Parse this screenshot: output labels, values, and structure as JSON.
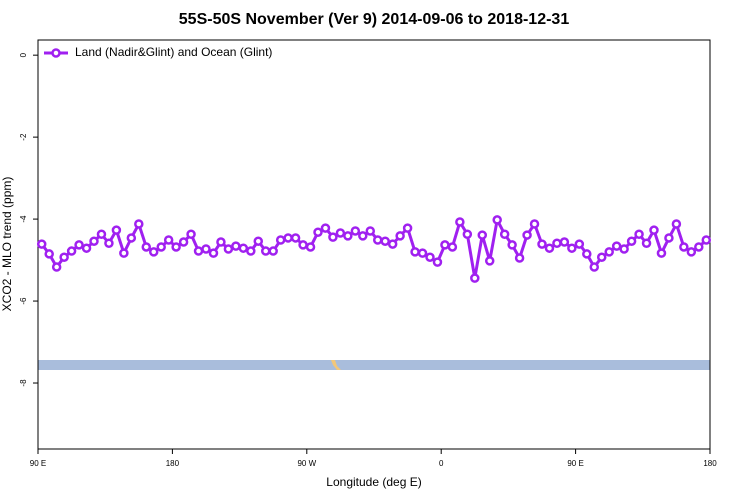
{
  "chart_data": {
    "type": "line",
    "title": "55S-50S November (Ver 9)   2014-09-06 to 2018-12-31",
    "xlabel": "Longitude (deg E)",
    "ylabel": "XCO2 - MLO trend (ppm)",
    "legend": "top-left",
    "x": [
      92.5,
      97.5,
      102.5,
      107.5,
      112.5,
      117.5,
      122.5,
      127.5,
      132.5,
      137.5,
      142.5,
      147.5,
      152.5,
      157.5,
      162.5,
      167.5,
      172.5,
      177.5,
      182.5,
      187.5,
      192.5,
      197.5,
      202.5,
      207.5,
      212.5,
      217.5,
      222.5,
      227.5,
      232.5,
      237.5,
      242.5,
      247.5,
      252.5,
      257.5,
      262.5,
      267.5,
      272.5,
      277.5,
      282.5,
      287.5,
      292.5,
      297.5,
      302.5,
      307.5,
      312.5,
      317.5,
      322.5,
      327.5,
      332.5,
      337.5,
      342.5,
      347.5,
      352.5,
      357.5,
      362.5,
      367.5,
      372.5,
      377.5,
      382.5,
      387.5,
      392.5,
      397.5,
      402.5,
      407.5,
      412.5,
      417.5,
      422.5,
      427.5,
      432.5,
      437.5,
      442.5,
      447.5,
      452.5,
      457.5,
      462.5,
      467.5,
      472.5,
      477.5,
      482.5,
      487.5,
      492.5,
      497.5,
      502.5,
      507.5,
      512.5,
      517.5,
      522.5,
      527.5,
      532.5,
      537.5
    ],
    "series": [
      {
        "name": "Land (Nadir&Glint) and Ocean (Glint)",
        "color": "#a020f0",
        "values": [
          -4.61,
          -4.85,
          -5.17,
          -4.93,
          -4.78,
          -4.63,
          -4.71,
          -4.54,
          -4.37,
          -4.59,
          -4.27,
          -4.83,
          -4.46,
          -4.12,
          -4.68,
          -4.8,
          -4.68,
          -4.51,
          -4.68,
          -4.56,
          -4.37,
          -4.78,
          -4.73,
          -4.83,
          -4.56,
          -4.73,
          -4.66,
          -4.71,
          -4.78,
          -4.54,
          -4.78,
          -4.78,
          -4.51,
          -4.46,
          -4.46,
          -4.63,
          -4.68,
          -4.32,
          -4.22,
          -4.44,
          -4.34,
          -4.41,
          -4.29,
          -4.41,
          -4.29,
          -4.51,
          -4.54,
          -4.61,
          -4.41,
          -4.22,
          -4.8,
          -4.83,
          -4.93,
          -5.05,
          -4.63,
          -4.68,
          -4.07,
          -4.37,
          -5.44,
          -4.39,
          -5.02,
          -4.02,
          -4.37,
          -4.63,
          -4.95,
          -4.39,
          -4.12,
          -4.61,
          -4.71,
          -4.59,
          -4.56,
          -4.71,
          -4.61,
          -4.85,
          -5.17,
          -4.93,
          -4.8,
          -4.66,
          -4.73,
          -4.54,
          -4.37,
          -4.59,
          -4.27,
          -4.83,
          -4.46,
          -4.12,
          -4.68,
          -4.8,
          -4.68,
          -4.51
        ]
      }
    ],
    "xlim": [
      90,
      540
    ],
    "xticks": [
      {
        "value": 90,
        "label": "90 E"
      },
      {
        "value": 180,
        "label": "180"
      },
      {
        "value": 270,
        "label": "90 W"
      },
      {
        "value": 360,
        "label": "0"
      },
      {
        "value": 450,
        "label": "90 E"
      },
      {
        "value": 540,
        "label": "180"
      }
    ],
    "ylim": [
      -9.61,
      0.37
    ],
    "yticks": [
      0,
      -2,
      -4,
      -6,
      -8
    ]
  }
}
